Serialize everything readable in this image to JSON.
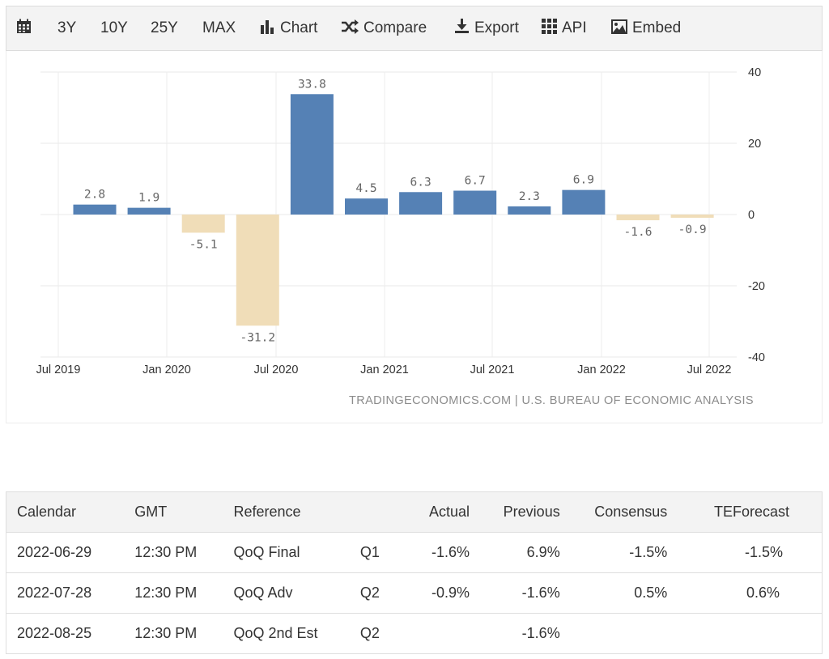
{
  "toolbar": {
    "items": [
      {
        "label": "",
        "icon": "calendar-icon"
      },
      {
        "label": "3Y"
      },
      {
        "label": "10Y"
      },
      {
        "label": "25Y"
      },
      {
        "label": "MAX"
      },
      {
        "label": "Chart",
        "icon": "bar-chart-icon"
      },
      {
        "label": "Compare",
        "icon": "shuffle-icon"
      },
      {
        "label": "Export",
        "icon": "download-icon"
      },
      {
        "label": "API",
        "icon": "grid-icon"
      },
      {
        "label": "Embed",
        "icon": "image-icon"
      }
    ]
  },
  "chart_data": {
    "type": "bar",
    "categories": [
      "2019-Q3",
      "2019-Q4",
      "2020-Q1",
      "2020-Q2",
      "2020-Q3",
      "2020-Q4",
      "2021-Q1",
      "2021-Q2",
      "2021-Q3",
      "2021-Q4",
      "2022-Q1",
      "2022-Q2"
    ],
    "values": [
      2.8,
      1.9,
      -5.1,
      -31.2,
      33.8,
      4.5,
      6.3,
      6.7,
      2.3,
      6.9,
      -1.6,
      -0.9
    ],
    "x_tick_labels": [
      "Jul 2019",
      "Jan 2020",
      "Jul 2020",
      "Jan 2021",
      "Jul 2021",
      "Jan 2022",
      "Jul 2022"
    ],
    "y_ticks": [
      40,
      20,
      0,
      -20,
      -40
    ],
    "ylim": [
      -40,
      40
    ],
    "y_axis_side": "right",
    "grid": true,
    "colors": {
      "positive": "#5581b5",
      "negative": "#f0ddb8"
    },
    "source": "TRADINGECONOMICS.COM | U.S. BUREAU OF ECONOMIC ANALYSIS"
  },
  "table": {
    "headers": {
      "calendar": "Calendar",
      "gmt": "GMT",
      "reference": "Reference",
      "actual": "Actual",
      "previous": "Previous",
      "consensus": "Consensus",
      "teforecast": "TEForecast"
    },
    "rows": [
      {
        "calendar": "2022-06-29",
        "gmt": "12:30 PM",
        "reference": "QoQ Final",
        "period": "Q1",
        "actual": "-1.6%",
        "previous": "6.9%",
        "consensus": "-1.5%",
        "teforecast": "-1.5%"
      },
      {
        "calendar": "2022-07-28",
        "gmt": "12:30 PM",
        "reference": "QoQ Adv",
        "period": "Q2",
        "actual": "-0.9%",
        "previous": "-1.6%",
        "consensus": "0.5%",
        "teforecast": "0.6%"
      },
      {
        "calendar": "2022-08-25",
        "gmt": "12:30 PM",
        "reference": "QoQ 2nd Est",
        "period": "Q2",
        "actual": "",
        "previous": "-1.6%",
        "consensus": "",
        "teforecast": ""
      }
    ]
  }
}
